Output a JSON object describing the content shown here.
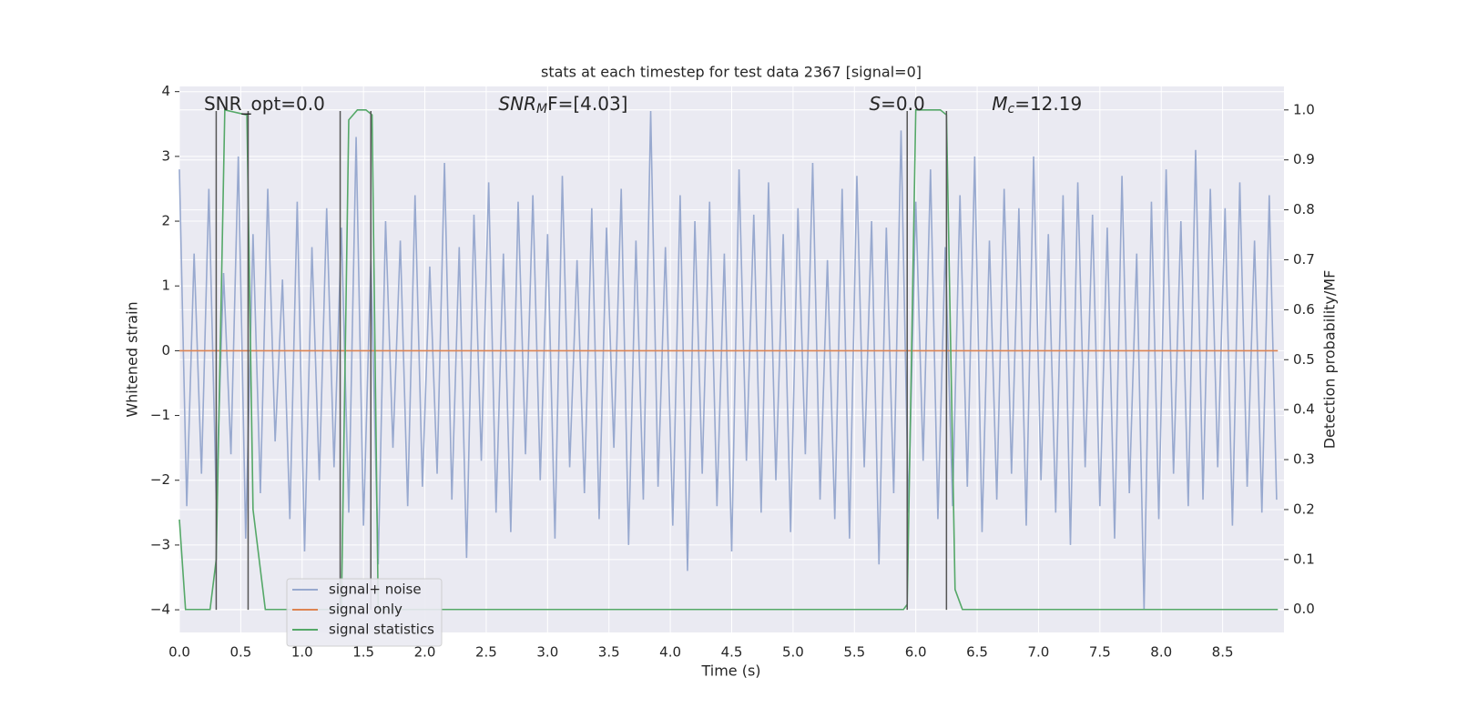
{
  "chart_data": {
    "type": "line",
    "title": "stats at each timestep for test data 2367 [signal=0]",
    "xlabel": "Time (s)",
    "ylabel": "Whitened strain",
    "y2label": "Detection probability/MF",
    "xlim": [
      0,
      9.0
    ],
    "ylim": [
      -4.35,
      4.08
    ],
    "y2lim": [
      -0.046,
      1.047
    ],
    "grid": true,
    "legend": "lower left",
    "xticks": [
      {
        "value": 0,
        "label": "0.0"
      },
      0.5,
      {
        "value": 1,
        "label": "1.0"
      },
      1.5,
      {
        "value": 2,
        "label": "2.0"
      },
      2.5,
      {
        "value": 3,
        "label": "3.0"
      },
      3.5,
      {
        "value": 4,
        "label": "4.0"
      },
      4.5,
      {
        "value": 5,
        "label": "5.0"
      },
      5.5,
      {
        "value": 6,
        "label": "6.0"
      },
      6.5,
      {
        "value": 7,
        "label": "7.0"
      },
      7.5,
      {
        "value": 8,
        "label": "8.0"
      },
      8.5
    ],
    "yticks": [
      {
        "value": -4,
        "label": "−4"
      },
      {
        "value": -3,
        "label": "−3"
      },
      {
        "value": -2,
        "label": "−2"
      },
      {
        "value": -1,
        "label": "−1"
      },
      0,
      1,
      2,
      3,
      4
    ],
    "y2ticks": [
      {
        "value": 0,
        "label": "0.0"
      },
      0.1,
      0.2,
      0.3,
      0.4,
      0.5,
      0.6,
      0.7,
      0.8,
      0.9,
      {
        "value": 1,
        "label": "1.0"
      }
    ],
    "series": [
      {
        "name": "signal+ noise",
        "color": "#98a9cf",
        "x": [
          0,
          0.06,
          0.12,
          0.18,
          0.24,
          0.3,
          0.36,
          0.42,
          0.48,
          0.54,
          0.6,
          0.66,
          0.72,
          0.78,
          0.84,
          0.9,
          0.96,
          1.02,
          1.08,
          1.14,
          1.2,
          1.26,
          1.32,
          1.38,
          1.44,
          1.5,
          1.56,
          1.62,
          1.68,
          1.74,
          1.8,
          1.86,
          1.92,
          1.98,
          2.04,
          2.1,
          2.16,
          2.22,
          2.28,
          2.34,
          2.4,
          2.46,
          2.52,
          2.58,
          2.64,
          2.7,
          2.76,
          2.82,
          2.88,
          2.94,
          3.0,
          3.06,
          3.12,
          3.18,
          3.24,
          3.3,
          3.36,
          3.42,
          3.48,
          3.54,
          3.6,
          3.66,
          3.72,
          3.78,
          3.84,
          3.9,
          3.96,
          4.02,
          4.08,
          4.14,
          4.2,
          4.26,
          4.32,
          4.38,
          4.44,
          4.5,
          4.56,
          4.62,
          4.68,
          4.74,
          4.8,
          4.86,
          4.92,
          4.98,
          5.04,
          5.1,
          5.16,
          5.22,
          5.28,
          5.34,
          5.4,
          5.46,
          5.52,
          5.58,
          5.64,
          5.7,
          5.76,
          5.82,
          5.88,
          5.94,
          6.0,
          6.06,
          6.12,
          6.18,
          6.24,
          6.3,
          6.36,
          6.42,
          6.48,
          6.54,
          6.6,
          6.66,
          6.72,
          6.78,
          6.84,
          6.9,
          6.96,
          7.02,
          7.08,
          7.14,
          7.2,
          7.26,
          7.32,
          7.38,
          7.44,
          7.5,
          7.56,
          7.62,
          7.68,
          7.74,
          7.8,
          7.86,
          7.92,
          7.98,
          8.04,
          8.1,
          8.16,
          8.22,
          8.28,
          8.34,
          8.4,
          8.46,
          8.52,
          8.58,
          8.64,
          8.7,
          8.76,
          8.82,
          8.88,
          8.94
        ],
        "values": [
          2.8,
          -2.4,
          1.5,
          -1.9,
          2.5,
          -2.3,
          1.2,
          -1.6,
          3.0,
          -2.9,
          1.8,
          -2.2,
          2.5,
          -1.4,
          1.1,
          -2.6,
          2.3,
          -3.1,
          1.6,
          -2.0,
          2.2,
          -1.8,
          1.9,
          -2.5,
          3.3,
          -2.7,
          1.4,
          -3.3,
          2.0,
          -1.5,
          1.7,
          -2.4,
          2.4,
          -2.1,
          1.3,
          -1.9,
          2.9,
          -2.3,
          1.6,
          -3.2,
          2.1,
          -1.7,
          2.6,
          -2.5,
          1.5,
          -2.8,
          2.3,
          -1.6,
          2.4,
          -2.0,
          1.8,
          -2.9,
          2.7,
          -1.8,
          1.4,
          -2.2,
          2.2,
          -2.6,
          1.9,
          -1.5,
          2.5,
          -3.0,
          1.7,
          -2.3,
          3.7,
          -2.1,
          1.6,
          -2.7,
          2.4,
          -3.4,
          2.0,
          -1.9,
          2.3,
          -2.4,
          1.5,
          -3.1,
          2.8,
          -1.7,
          2.1,
          -2.5,
          2.6,
          -2.0,
          1.8,
          -2.8,
          2.2,
          -1.6,
          2.9,
          -2.3,
          1.4,
          -2.6,
          2.5,
          -2.9,
          2.7,
          -1.8,
          2.0,
          -3.3,
          1.9,
          -2.2,
          3.4,
          -2.5,
          2.3,
          -1.7,
          2.8,
          -2.6,
          1.6,
          -2.4,
          2.4,
          -2.1,
          3.0,
          -2.8,
          1.7,
          -2.3,
          2.5,
          -1.9,
          2.2,
          -2.7,
          3.0,
          -2.0,
          1.8,
          -2.5,
          2.4,
          -3.0,
          2.6,
          -1.8,
          2.1,
          -2.4,
          1.9,
          -2.9,
          2.7,
          -2.2,
          1.5,
          -4.0,
          2.3,
          -2.6,
          2.8,
          -1.9,
          2.0,
          -2.4,
          3.1,
          -2.3,
          2.5,
          -1.8,
          2.2,
          -2.7,
          2.6,
          -2.1,
          1.7,
          -2.5,
          2.4,
          -2.3
        ]
      },
      {
        "name": "signal only",
        "color": "#dd8452",
        "x": [
          0,
          8.95
        ],
        "values": [
          0,
          0
        ]
      },
      {
        "name": "signal statistics",
        "color": "#55a868",
        "axis": "y2",
        "x": [
          0,
          0.05,
          0.25,
          0.3,
          0.37,
          0.55,
          0.6,
          0.7,
          1.32,
          1.38,
          1.45,
          1.52,
          1.57,
          1.62,
          5.9,
          5.93,
          6.0,
          6.2,
          6.25,
          6.32,
          6.38,
          8.95
        ],
        "values": [
          0.18,
          0.0,
          0.0,
          0.1,
          1.0,
          0.99,
          0.2,
          0.0,
          0.0,
          0.98,
          1.0,
          1.0,
          0.99,
          0.0,
          0.0,
          0.01,
          1.0,
          1.0,
          0.99,
          0.04,
          0.0,
          0.0
        ]
      }
    ],
    "vlines": {
      "x": [
        0.3,
        0.56,
        1.31,
        1.56,
        5.93,
        6.25
      ],
      "ymin": -4,
      "ymax": 3.7,
      "color": "#555555"
    },
    "annotations": [
      {
        "x": 0.2,
        "y": 3.8,
        "text": "SNR_opt=0.0"
      },
      {
        "x": 2.6,
        "y": 3.8,
        "italic": "SNR",
        "sub": "M",
        "text": "F=[4.03]"
      },
      {
        "x": 5.62,
        "y": 3.8,
        "italic": "S",
        "text": "=0.0"
      },
      {
        "x": 6.62,
        "y": 3.8,
        "italic": "M",
        "sub": "c",
        "text": "=12.19"
      }
    ]
  }
}
